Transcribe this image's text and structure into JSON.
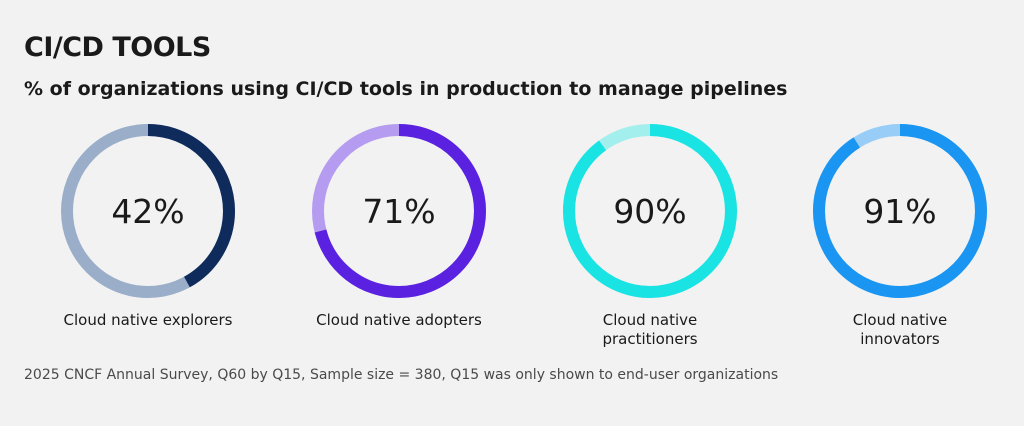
{
  "chart_data": {
    "type": "donut",
    "title": "CI/CD TOOLS",
    "subtitle": "% of organizations using CI/CD tools in production to manage pipelines",
    "categories": [
      "Cloud native explorers",
      "Cloud native adopters",
      "Cloud native practitioners",
      "Cloud native innovators"
    ],
    "values": [
      42,
      71,
      90,
      91
    ],
    "value_labels": [
      "42%",
      "71%",
      "90%",
      "91%"
    ],
    "colors": [
      {
        "filled": "#0e2b5c",
        "remainder": "#9aaec9"
      },
      {
        "filled": "#5b21e0",
        "remainder": "#b59cf0"
      },
      {
        "filled": "#19e3e3",
        "remainder": "#a3efee"
      },
      {
        "filled": "#1a95f2",
        "remainder": "#97cdf7"
      }
    ],
    "label_lines": [
      [
        "Cloud native explorers"
      ],
      [
        "Cloud native adopters"
      ],
      [
        "Cloud native",
        "practitioners"
      ],
      [
        "Cloud native",
        "innovators"
      ]
    ]
  },
  "footnote": "2025 CNCF Annual Survey, Q60 by Q15, Sample size = 380, Q15 was only shown to end-user organizations"
}
